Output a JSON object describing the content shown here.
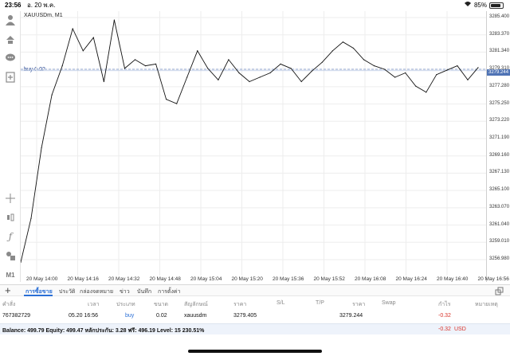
{
  "status_bar": {
    "time": "23:56",
    "date": "อ. 20 พ.ค.",
    "battery": "85%",
    "battery_level": 0.85
  },
  "chart": {
    "title": "XAUUSDm, M1",
    "order_line_label": "buy 0.02"
  },
  "toolbar_icons": [
    "person-icon",
    "order-icon",
    "chat-icon",
    "add-indicator-icon",
    "crosshair-icon",
    "candle-type-icon",
    "function-icon",
    "objects-icon",
    "timeframe-icon"
  ],
  "toolbar": {
    "timeframe_label": "M1"
  },
  "price_axis": {
    "ticks": [
      "3285.400",
      "3283.370",
      "3281.340",
      "3279.310",
      "3277.280",
      "3275.250",
      "3273.220",
      "3271.190",
      "3269.160",
      "3267.130",
      "3265.100",
      "3263.070",
      "3261.040",
      "3259.010",
      "3256.980"
    ],
    "current_price": "3279.244"
  },
  "time_axis": {
    "ticks": [
      "20 May 14:00",
      "20 May 14:16",
      "20 May 14:32",
      "20 May 14:48",
      "20 May 15:04",
      "20 May 15:20",
      "20 May 15:36",
      "20 May 15:52",
      "20 May 16:08",
      "20 May 16:24",
      "20 May 16:40",
      "20 May 16:56"
    ]
  },
  "chart_data": {
    "type": "line",
    "title": "XAUUSDm, M1",
    "ylim": [
      3256.0,
      3286.0
    ],
    "x": [
      "13:56",
      "14:00",
      "14:04",
      "14:08",
      "14:12",
      "14:16",
      "14:20",
      "14:24",
      "14:28",
      "14:32",
      "14:36",
      "14:40",
      "14:44",
      "14:48",
      "14:52",
      "14:56",
      "15:00",
      "15:04",
      "15:08",
      "15:12",
      "15:16",
      "15:20",
      "15:24",
      "15:28",
      "15:32",
      "15:36",
      "15:40",
      "15:44",
      "15:48",
      "15:52",
      "15:56",
      "16:00",
      "16:04",
      "16:08",
      "16:12",
      "16:16",
      "16:20",
      "16:24",
      "16:28",
      "16:32",
      "16:36",
      "16:40",
      "16:44",
      "16:48",
      "16:52"
    ],
    "series": [
      {
        "values": [
          3257.5,
          3262.5,
          3270.5,
          3276.5,
          3279.8,
          3284.0,
          3281.5,
          3283.0,
          3278.0,
          3285.0,
          3279.5,
          3280.5,
          3279.8,
          3280.0,
          3276.0,
          3275.5,
          3278.5,
          3281.5,
          3279.5,
          3278.2,
          3280.5,
          3279.0,
          3278.0,
          3278.5,
          3279.0,
          3280.0,
          3279.5,
          3278.0,
          3279.2,
          3280.2,
          3281.5,
          3282.5,
          3281.8,
          3280.5,
          3279.8,
          3279.4,
          3278.5,
          3279.0,
          3277.5,
          3276.8,
          3278.8,
          3279.3,
          3279.8,
          3278.2,
          3279.6
        ]
      }
    ],
    "order_line": {
      "label": "buy 0.02",
      "price": 3279.405
    },
    "current_price": 3279.244
  },
  "terminal": {
    "plus_label": "+",
    "tabs": [
      "การซื้อขาย",
      "ประวัติ",
      "กล่องจดหมาย",
      "ข่าว",
      "บันทึก",
      "การตั้งค่า"
    ],
    "headers": [
      "คำสั่ง",
      "เวลา",
      "ประเภท",
      "ขนาด",
      "สัญลักษณ์",
      "ราคา",
      "S/L",
      "T/P",
      "ราคา",
      "Swap",
      "กำไร",
      "หมายเหตุ"
    ],
    "position": {
      "ticket": "767382729",
      "time": "05.20 16:56",
      "type": "buy",
      "size": "0.02",
      "symbol": "xauusdm",
      "open_price": "3279.405",
      "current_price": "3279.244",
      "profit": "-0.32"
    },
    "balance_line": "Balance: 499.79 Equity: 499.47 หลักประกัน: 3.28 ฟรี: 496.19 Level: 15 230.51%",
    "balance_profit": "-0.32",
    "currency": "USD"
  }
}
